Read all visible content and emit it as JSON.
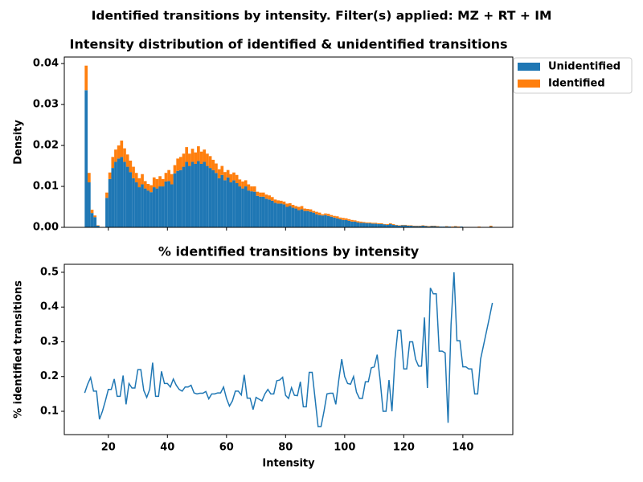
{
  "title": "Identified transitions by intensity. Filter(s) applied: MZ + RT + IM",
  "chart_data": [
    {
      "type": "histogram",
      "title": "Intensity distribution of identified & unidentified transitions",
      "ylabel": "Density",
      "stacked": true,
      "legend": "outside upper right",
      "bins": [
        12,
        13,
        14,
        15,
        16,
        17,
        18,
        19,
        20,
        21,
        22,
        23,
        24,
        25,
        26,
        27,
        28,
        29,
        30,
        31,
        32,
        33,
        34,
        35,
        36,
        37,
        38,
        39,
        40,
        41,
        42,
        43,
        44,
        45,
        46,
        47,
        48,
        49,
        50,
        51,
        52,
        53,
        54,
        55,
        56,
        57,
        58,
        59,
        60,
        61,
        62,
        63,
        64,
        65,
        66,
        67,
        68,
        69,
        70,
        71,
        72,
        73,
        74,
        75,
        76,
        77,
        78,
        79,
        80,
        81,
        82,
        83,
        84,
        85,
        86,
        87,
        88,
        89,
        90,
        91,
        92,
        93,
        94,
        95,
        96,
        97,
        98,
        99,
        100,
        101,
        102,
        103,
        104,
        105,
        106,
        107,
        108,
        109,
        110,
        111,
        112,
        113,
        114,
        115,
        116,
        117,
        118,
        119,
        120,
        121,
        122,
        123,
        124,
        125,
        126,
        127,
        128,
        129,
        130,
        131,
        132,
        133,
        134,
        135,
        136,
        137,
        138,
        139,
        140,
        141,
        142,
        143,
        144,
        145,
        146,
        147,
        148,
        149,
        150
      ],
      "series": [
        {
          "name": "Unidentified",
          "color": "#1f77b4",
          "values": [
            0.0335,
            0.011,
            0.0035,
            0.0025,
            0.0004,
            0,
            0,
            0.0072,
            0.0118,
            0.0145,
            0.016,
            0.0168,
            0.0172,
            0.016,
            0.0148,
            0.0135,
            0.012,
            0.011,
            0.0098,
            0.0105,
            0.0095,
            0.009,
            0.0086,
            0.0098,
            0.0095,
            0.01,
            0.01,
            0.0112,
            0.0113,
            0.0105,
            0.0132,
            0.0138,
            0.014,
            0.0148,
            0.016,
            0.015,
            0.016,
            0.0155,
            0.0162,
            0.0155,
            0.016,
            0.015,
            0.0145,
            0.014,
            0.0133,
            0.012,
            0.0128,
            0.0115,
            0.0122,
            0.011,
            0.0115,
            0.0108,
            0.01,
            0.0095,
            0.01,
            0.009,
            0.0088,
            0.0087,
            0.0077,
            0.0075,
            0.0075,
            0.007,
            0.0068,
            0.0065,
            0.006,
            0.0058,
            0.0058,
            0.0056,
            0.005,
            0.0052,
            0.0048,
            0.0046,
            0.0042,
            0.0044,
            0.004,
            0.004,
            0.0038,
            0.0036,
            0.0032,
            0.003,
            0.0029,
            0.003,
            0.0028,
            0.0026,
            0.0024,
            0.0022,
            0.002,
            0.0018,
            0.0018,
            0.0016,
            0.0014,
            0.0014,
            0.0012,
            0.0011,
            0.0011,
            0.001,
            0.001,
            0.0009,
            0.0009,
            0.0008,
            0.0008,
            0.0007,
            0.0006,
            0.0008,
            0.0006,
            0.0005,
            0.0004,
            0.0005,
            0.0005,
            0.0004,
            0.0004,
            0.0003,
            0.0003,
            0.0003,
            0.0004,
            0.0003,
            0.0002,
            0.0003,
            0.0003,
            0.0002,
            0.0002,
            0.0002,
            0.0002,
            0.0002,
            0.0001,
            0.0002,
            0.0001,
            0.0002,
            0.0001,
            0.0001,
            0.0001,
            0.0001,
            0.0001,
            0.0001,
            0.0001,
            0.0001,
            0.0001,
            0.0002
          ]
        },
        {
          "name": "Identified",
          "color": "#ff7f0e",
          "values": [
            0.006,
            0.0023,
            0.0008,
            0.0004,
            0.0001,
            0,
            0,
            0.0013,
            0.0016,
            0.0027,
            0.003,
            0.0032,
            0.004,
            0.0033,
            0.003,
            0.0028,
            0.0028,
            0.0023,
            0.0022,
            0.0025,
            0.0018,
            0.0016,
            0.0017,
            0.0024,
            0.0023,
            0.0025,
            0.0018,
            0.0021,
            0.0027,
            0.0025,
            0.002,
            0.003,
            0.0032,
            0.0032,
            0.0036,
            0.003,
            0.0032,
            0.0028,
            0.0036,
            0.003,
            0.003,
            0.003,
            0.0029,
            0.0025,
            0.0023,
            0.0022,
            0.0022,
            0.002,
            0.0018,
            0.002,
            0.0019,
            0.002,
            0.0017,
            0.0017,
            0.0015,
            0.0015,
            0.0012,
            0.0013,
            0.001,
            0.001,
            0.001,
            0.001,
            0.001,
            0.0009,
            0.0008,
            0.0008,
            0.0007,
            0.0007,
            0.0008,
            0.0007,
            0.0007,
            0.0006,
            0.0008,
            0.0008,
            0.0006,
            0.0005,
            0.0006,
            0.0004,
            0.0006,
            0.0006,
            0.0003,
            0.0004,
            0.0005,
            0.0004,
            0.0004,
            0.0005,
            0.0004,
            0.0005,
            0.0004,
            0.0004,
            0.0004,
            0.0003,
            0.0003,
            0.0003,
            0.0002,
            0.0002,
            0.0002,
            0.0002,
            0.0002,
            0.0002,
            0.0002,
            0.0001,
            0.0002,
            0.0002,
            0.0002,
            0.0001,
            0.0001,
            0.0001,
            0.0001,
            0.0001,
            0.0001,
            0.0001,
            0.0001,
            0.0001,
            0.0001,
            0.0001,
            0.0001,
            0.0001,
            0.0001,
            0.0001,
            0,
            0,
            0.0001,
            0,
            0.0001,
            0.0001,
            0.0001,
            0,
            0,
            0,
            0,
            0,
            0,
            0.0001,
            0,
            0,
            0,
            0.0002
          ]
        }
      ],
      "xlim": [
        5.1,
        156.9
      ],
      "xticks": [
        20,
        40,
        60,
        80,
        100,
        120,
        140
      ],
      "xticklabels": false,
      "ylim": [
        0,
        0.0416
      ],
      "yticks": [
        {
          "value": 0,
          "label": "0.00"
        },
        {
          "value": 0.01,
          "label": "0.01"
        },
        {
          "value": 0.02,
          "label": "0.02"
        },
        {
          "value": 0.03,
          "label": "0.03"
        },
        {
          "value": 0.04,
          "label": "0.04"
        }
      ]
    },
    {
      "type": "line",
      "title": "% identified transitions by intensity",
      "xlabel": "Intensity",
      "ylabel": "% identified transitions",
      "x": [
        12,
        13,
        14,
        15,
        16,
        17,
        18,
        19,
        20,
        21,
        22,
        23,
        24,
        25,
        26,
        27,
        28,
        29,
        30,
        31,
        32,
        33,
        34,
        35,
        36,
        37,
        38,
        39,
        40,
        41,
        42,
        43,
        44,
        45,
        46,
        47,
        48,
        49,
        50,
        51,
        52,
        53,
        54,
        55,
        56,
        57,
        58,
        59,
        60,
        61,
        62,
        63,
        64,
        65,
        66,
        67,
        68,
        69,
        70,
        71,
        72,
        73,
        74,
        75,
        76,
        77,
        78,
        79,
        80,
        81,
        82,
        83,
        84,
        85,
        86,
        87,
        88,
        89,
        90,
        91,
        92,
        93,
        94,
        95,
        96,
        97,
        98,
        99,
        100,
        101,
        102,
        103,
        104,
        105,
        106,
        107,
        108,
        109,
        110,
        111,
        112,
        113,
        114,
        115,
        116,
        117,
        118,
        119,
        120,
        121,
        122,
        123,
        124,
        125,
        126,
        127,
        128,
        129,
        130,
        131,
        132,
        133,
        134,
        135,
        136,
        137,
        138,
        139,
        140,
        141,
        142,
        143,
        144,
        145,
        146,
        147,
        148,
        149,
        150
      ],
      "series": [
        {
          "color": "#1f77b4",
          "values": [
            0.153,
            0.178,
            0.197,
            0.158,
            0.158,
            0.077,
            0.1,
            0.13,
            0.163,
            0.163,
            0.193,
            0.143,
            0.143,
            0.203,
            0.12,
            0.18,
            0.167,
            0.167,
            0.22,
            0.22,
            0.16,
            0.14,
            0.163,
            0.24,
            0.143,
            0.143,
            0.215,
            0.18,
            0.18,
            0.17,
            0.193,
            0.175,
            0.163,
            0.158,
            0.17,
            0.17,
            0.175,
            0.153,
            0.15,
            0.152,
            0.152,
            0.157,
            0.136,
            0.15,
            0.15,
            0.153,
            0.153,
            0.17,
            0.137,
            0.115,
            0.13,
            0.158,
            0.158,
            0.147,
            0.205,
            0.138,
            0.138,
            0.105,
            0.14,
            0.135,
            0.13,
            0.15,
            0.163,
            0.15,
            0.15,
            0.188,
            0.19,
            0.198,
            0.146,
            0.137,
            0.168,
            0.146,
            0.145,
            0.185,
            0.113,
            0.113,
            0.212,
            0.212,
            0.135,
            0.056,
            0.056,
            0.1,
            0.15,
            0.152,
            0.152,
            0.12,
            0.19,
            0.25,
            0.2,
            0.18,
            0.178,
            0.2,
            0.155,
            0.137,
            0.137,
            0.185,
            0.185,
            0.225,
            0.228,
            0.263,
            0.19,
            0.1,
            0.1,
            0.19,
            0.1,
            0.25,
            0.333,
            0.333,
            0.222,
            0.222,
            0.3,
            0.3,
            0.25,
            0.23,
            0.23,
            0.37,
            0.167,
            0.455,
            0.438,
            0.438,
            0.273,
            0.273,
            0.268,
            0.067,
            0.35,
            0.5,
            0.303,
            0.303,
            0.228,
            0.228,
            0.222,
            0.222,
            0.15,
            0.15,
            0.25,
            0.29,
            0.33,
            0.37,
            0.412
          ]
        }
      ],
      "xlim": [
        5.1,
        156.9
      ],
      "xticks": [
        20,
        40,
        60,
        80,
        100,
        120,
        140
      ],
      "ylim": [
        0.033,
        0.523
      ],
      "yticks": [
        0.1,
        0.2,
        0.3,
        0.4,
        0.5
      ]
    }
  ]
}
